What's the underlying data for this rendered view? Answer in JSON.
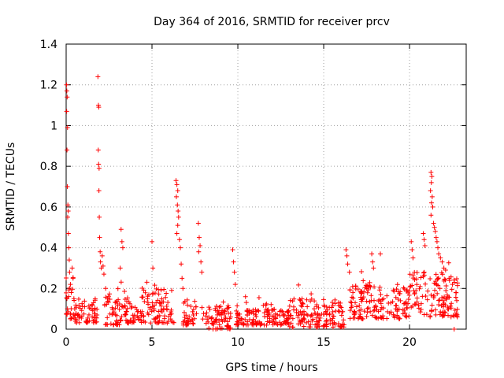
{
  "chart_data": {
    "type": "scatter",
    "title": "Day 364 of 2016, SRMTID for receiver prcv",
    "xlabel": "GPS time / hours",
    "ylabel": "SRMTID / TECUs",
    "xlim": [
      0,
      23.3
    ],
    "ylim": [
      0,
      1.4
    ],
    "xticks": [
      0,
      5,
      10,
      15,
      20
    ],
    "xtick_labels": [
      "0",
      "5",
      "10",
      "15",
      "20"
    ],
    "yticks": [
      0,
      0.2,
      0.4,
      0.6,
      0.8,
      1.0,
      1.2,
      1.4
    ],
    "ytick_labels": [
      "0",
      "0.2",
      "0.4",
      "0.6",
      "0.8",
      "1",
      "1.2",
      "1.4"
    ],
    "grid": true,
    "marker": "plus",
    "marker_color": "#ff0000",
    "series": [
      {
        "name": "prcv",
        "points": [
          [
            0.02,
            1.2
          ],
          [
            0.04,
            1.17
          ],
          [
            0.06,
            1.14
          ],
          [
            0.03,
            1.07
          ],
          [
            0.08,
            0.99
          ],
          [
            0.05,
            0.88
          ],
          [
            0.07,
            0.7
          ],
          [
            0.1,
            0.61
          ],
          [
            0.12,
            0.58
          ],
          [
            0.09,
            0.55
          ],
          [
            0.13,
            0.47
          ],
          [
            0.15,
            0.4
          ],
          [
            0.18,
            0.34
          ],
          [
            0.2,
            0.28
          ],
          [
            0.25,
            0.22
          ],
          [
            0.3,
            0.18
          ],
          [
            0.35,
            0.3
          ],
          [
            0.4,
            0.25
          ],
          [
            0.45,
            0.15
          ],
          [
            0.5,
            0.1
          ],
          [
            1.85,
            1.24
          ],
          [
            1.88,
            1.1
          ],
          [
            1.9,
            1.09
          ],
          [
            1.87,
            0.88
          ],
          [
            1.89,
            0.81
          ],
          [
            1.92,
            0.79
          ],
          [
            1.91,
            0.68
          ],
          [
            1.93,
            0.55
          ],
          [
            1.95,
            0.45
          ],
          [
            1.98,
            0.38
          ],
          [
            2.0,
            0.33
          ],
          [
            2.05,
            0.3
          ],
          [
            2.1,
            0.36
          ],
          [
            2.15,
            0.31
          ],
          [
            2.2,
            0.27
          ],
          [
            2.3,
            0.2
          ],
          [
            2.4,
            0.15
          ],
          [
            3.2,
            0.49
          ],
          [
            3.25,
            0.43
          ],
          [
            3.3,
            0.4
          ],
          [
            3.15,
            0.3
          ],
          [
            5.0,
            0.43
          ],
          [
            5.05,
            0.3
          ],
          [
            6.4,
            0.73
          ],
          [
            6.45,
            0.71
          ],
          [
            6.5,
            0.68
          ],
          [
            6.42,
            0.65
          ],
          [
            6.48,
            0.61
          ],
          [
            6.52,
            0.58
          ],
          [
            6.55,
            0.55
          ],
          [
            6.5,
            0.51
          ],
          [
            6.45,
            0.47
          ],
          [
            6.6,
            0.44
          ],
          [
            6.65,
            0.4
          ],
          [
            6.7,
            0.32
          ],
          [
            6.75,
            0.25
          ],
          [
            6.8,
            0.2
          ],
          [
            7.7,
            0.52
          ],
          [
            7.75,
            0.45
          ],
          [
            7.8,
            0.41
          ],
          [
            7.72,
            0.38
          ],
          [
            7.85,
            0.33
          ],
          [
            7.9,
            0.28
          ],
          [
            9.7,
            0.39
          ],
          [
            9.75,
            0.33
          ],
          [
            9.8,
            0.28
          ],
          [
            9.85,
            0.22
          ],
          [
            16.3,
            0.39
          ],
          [
            16.35,
            0.36
          ],
          [
            16.4,
            0.32
          ],
          [
            16.5,
            0.28
          ],
          [
            17.8,
            0.37
          ],
          [
            17.85,
            0.33
          ],
          [
            17.9,
            0.3
          ],
          [
            18.3,
            0.37
          ],
          [
            20.1,
            0.43
          ],
          [
            20.15,
            0.39
          ],
          [
            20.2,
            0.35
          ],
          [
            20.8,
            0.47
          ],
          [
            20.85,
            0.44
          ],
          [
            20.9,
            0.41
          ],
          [
            21.25,
            0.77
          ],
          [
            21.3,
            0.75
          ],
          [
            21.27,
            0.72
          ],
          [
            21.22,
            0.68
          ],
          [
            21.32,
            0.65
          ],
          [
            21.28,
            0.62
          ],
          [
            21.35,
            0.6
          ],
          [
            21.25,
            0.56
          ],
          [
            21.4,
            0.52
          ],
          [
            21.45,
            0.5
          ],
          [
            21.5,
            0.48
          ],
          [
            21.55,
            0.45
          ],
          [
            21.6,
            0.43
          ],
          [
            21.65,
            0.4
          ],
          [
            21.7,
            0.37
          ],
          [
            21.8,
            0.35
          ],
          [
            21.9,
            0.33
          ],
          [
            22.0,
            0.3
          ],
          [
            22.1,
            0.29
          ],
          [
            22.3,
            0.25
          ],
          [
            22.5,
            0.22
          ],
          [
            22.7,
            0.18
          ],
          [
            22.75,
            0.14
          ],
          [
            22.6,
            0.0
          ]
        ],
        "background_bands": [
          {
            "from": 0.0,
            "to": 0.5,
            "low": 0.05,
            "high": 0.2
          },
          {
            "from": 0.5,
            "to": 1.8,
            "low": 0.03,
            "high": 0.15
          },
          {
            "from": 2.2,
            "to": 3.1,
            "low": 0.02,
            "high": 0.2
          },
          {
            "from": 3.1,
            "to": 4.5,
            "low": 0.03,
            "high": 0.16
          },
          {
            "from": 4.5,
            "to": 6.3,
            "low": 0.03,
            "high": 0.2
          },
          {
            "from": 6.8,
            "to": 7.6,
            "low": 0.02,
            "high": 0.15
          },
          {
            "from": 7.9,
            "to": 9.6,
            "low": 0.0,
            "high": 0.12
          },
          {
            "from": 9.9,
            "to": 13.0,
            "low": 0.02,
            "high": 0.1
          },
          {
            "from": 13.0,
            "to": 16.2,
            "low": 0.01,
            "high": 0.15
          },
          {
            "from": 16.5,
            "to": 20.0,
            "low": 0.05,
            "high": 0.22
          },
          {
            "from": 20.0,
            "to": 22.8,
            "low": 0.06,
            "high": 0.28
          }
        ]
      }
    ]
  }
}
